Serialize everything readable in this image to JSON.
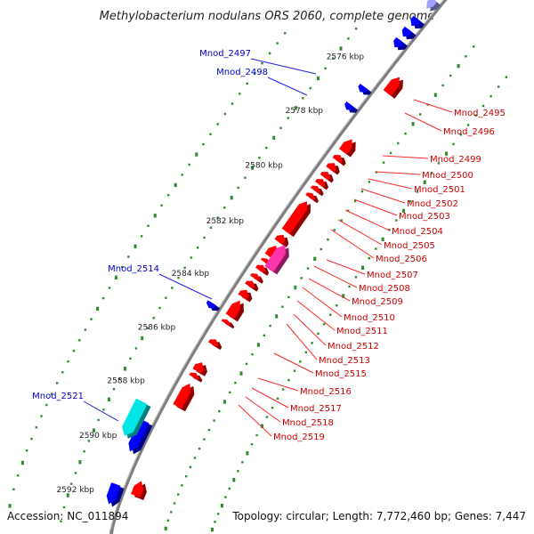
{
  "title": "Methylobacterium nodulans ORS 2060, complete genome",
  "accession_text": "Accession: NC_011894",
  "topology_text": "Topology: circular; Length: 7,772,460 bp; Genes: 7,447",
  "colors": {
    "backbone": "#7f7f7f",
    "forward_gene": "#ff0000",
    "reverse_gene": "#0000ff",
    "highlight_forward": "#ff33aa",
    "highlight_reverse": "#00e5e5",
    "gc_ticks": "#2e8b2e",
    "label_forward": "#cc0000",
    "label_reverse": "#0000cc"
  },
  "kbp_ticks": [
    "2576 kbp",
    "2578 kbp",
    "2580 kbp",
    "2582 kbp",
    "2584 kbp",
    "2586 kbp",
    "2588 kbp",
    "2590 kbp",
    "2592 kbp"
  ],
  "forward_labels": [
    "Mnod_2495",
    "Mnod_2496",
    "Mnod_2499",
    "Mnod_2500",
    "Mnod_2501",
    "Mnod_2502",
    "Mnod_2503",
    "Mnod_2504",
    "Mnod_2505",
    "Mnod_2506",
    "Mnod_2507",
    "Mnod_2508",
    "Mnod_2509",
    "Mnod_2510",
    "Mnod_2511",
    "Mnod_2512",
    "Mnod_2513",
    "Mnod_2515",
    "Mnod_2516",
    "Mnod_2517",
    "Mnod_2518",
    "Mnod_2519"
  ],
  "reverse_labels": [
    "Mnod_2497",
    "Mnod_2498",
    "Mnod_2514",
    "Mnod_2521"
  ]
}
